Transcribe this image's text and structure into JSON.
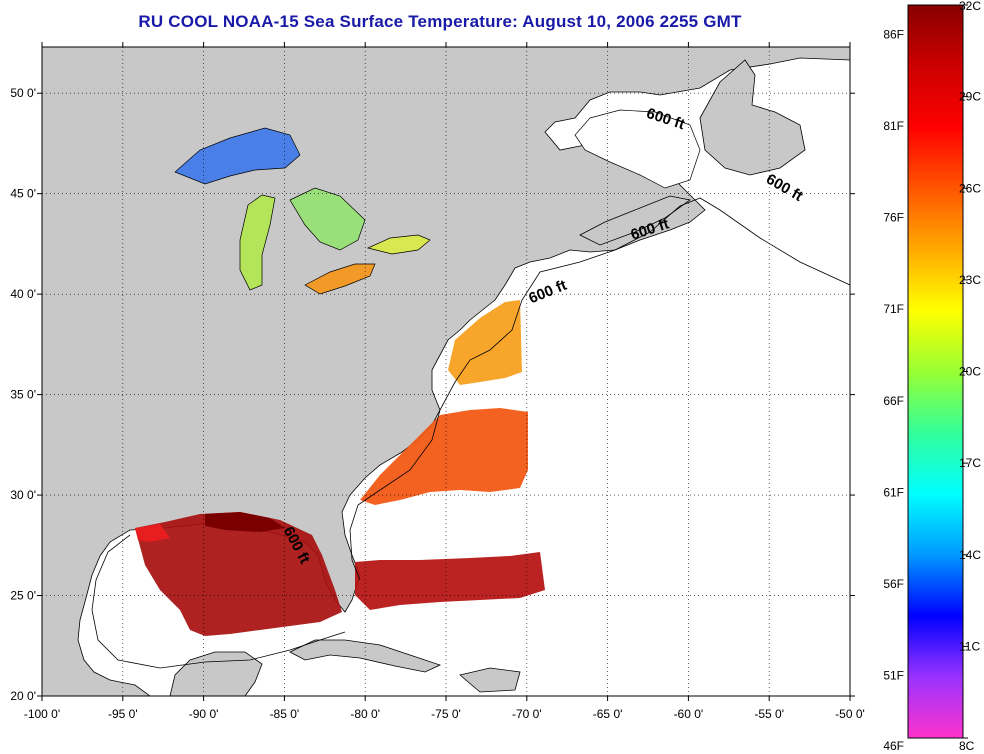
{
  "title": "RU COOL  NOAA-15  Sea Surface Temperature:  August 10, 2006 2255 GMT",
  "map": {
    "lon_range": [
      -100,
      -50
    ],
    "lat_range": [
      20,
      52.3
    ],
    "lon_ticks": [
      {
        "value": -100,
        "label": "-100 0'"
      },
      {
        "value": -95,
        "label": "-95 0'"
      },
      {
        "value": -90,
        "label": "-90 0'"
      },
      {
        "value": -85,
        "label": "-85 0'"
      },
      {
        "value": -80,
        "label": "-80 0'"
      },
      {
        "value": -75,
        "label": "-75 0'"
      },
      {
        "value": -70,
        "label": "-70 0'"
      },
      {
        "value": -65,
        "label": "-65 0'"
      },
      {
        "value": -60,
        "label": "-60 0'"
      },
      {
        "value": -55,
        "label": "-55 0'"
      },
      {
        "value": -50,
        "label": "-50 0'"
      }
    ],
    "lat_ticks": [
      {
        "value": 20,
        "label": "20 0'"
      },
      {
        "value": 25,
        "label": "25 0'"
      },
      {
        "value": 30,
        "label": "30 0'"
      },
      {
        "value": 35,
        "label": "35 0'"
      },
      {
        "value": 40,
        "label": "40 0'"
      },
      {
        "value": 45,
        "label": "45 0'"
      },
      {
        "value": 50,
        "label": "50 0'"
      }
    ],
    "grid": "dotted",
    "land_color": "#c8c8c8",
    "ocean_color": "#ffffff",
    "contour_labels": [
      {
        "text": "600 ft",
        "lon": -61.5,
        "lat": 48.5,
        "angle": 18
      },
      {
        "text": "600 ft",
        "lon": -54.2,
        "lat": 45.1,
        "angle": 30
      },
      {
        "text": "600 ft",
        "lon": -62.3,
        "lat": 43.0,
        "angle": -18
      },
      {
        "text": "600 ft",
        "lon": -68.6,
        "lat": 39.9,
        "angle": -22
      },
      {
        "text": "600 ft",
        "lon": -84.5,
        "lat": 27.4,
        "angle": 62
      }
    ]
  },
  "colorbar": {
    "stops": [
      "#ff33cc",
      "#9933ff",
      "#0000ff",
      "#0099ff",
      "#00ffff",
      "#33ff99",
      "#99ff33",
      "#ffff00",
      "#ffaa00",
      "#ff5500",
      "#ff0000",
      "#cc0000",
      "#880000"
    ],
    "celsius_range": [
      8,
      32
    ],
    "celsius_labels": [
      "8C",
      "11C",
      "14C",
      "17C",
      "20C",
      "23C",
      "26C",
      "29C",
      "32C"
    ],
    "fahrenheit_labels": [
      "46F",
      "51F",
      "56F",
      "61F",
      "66F",
      "71F",
      "76F",
      "81F",
      "86F"
    ]
  }
}
